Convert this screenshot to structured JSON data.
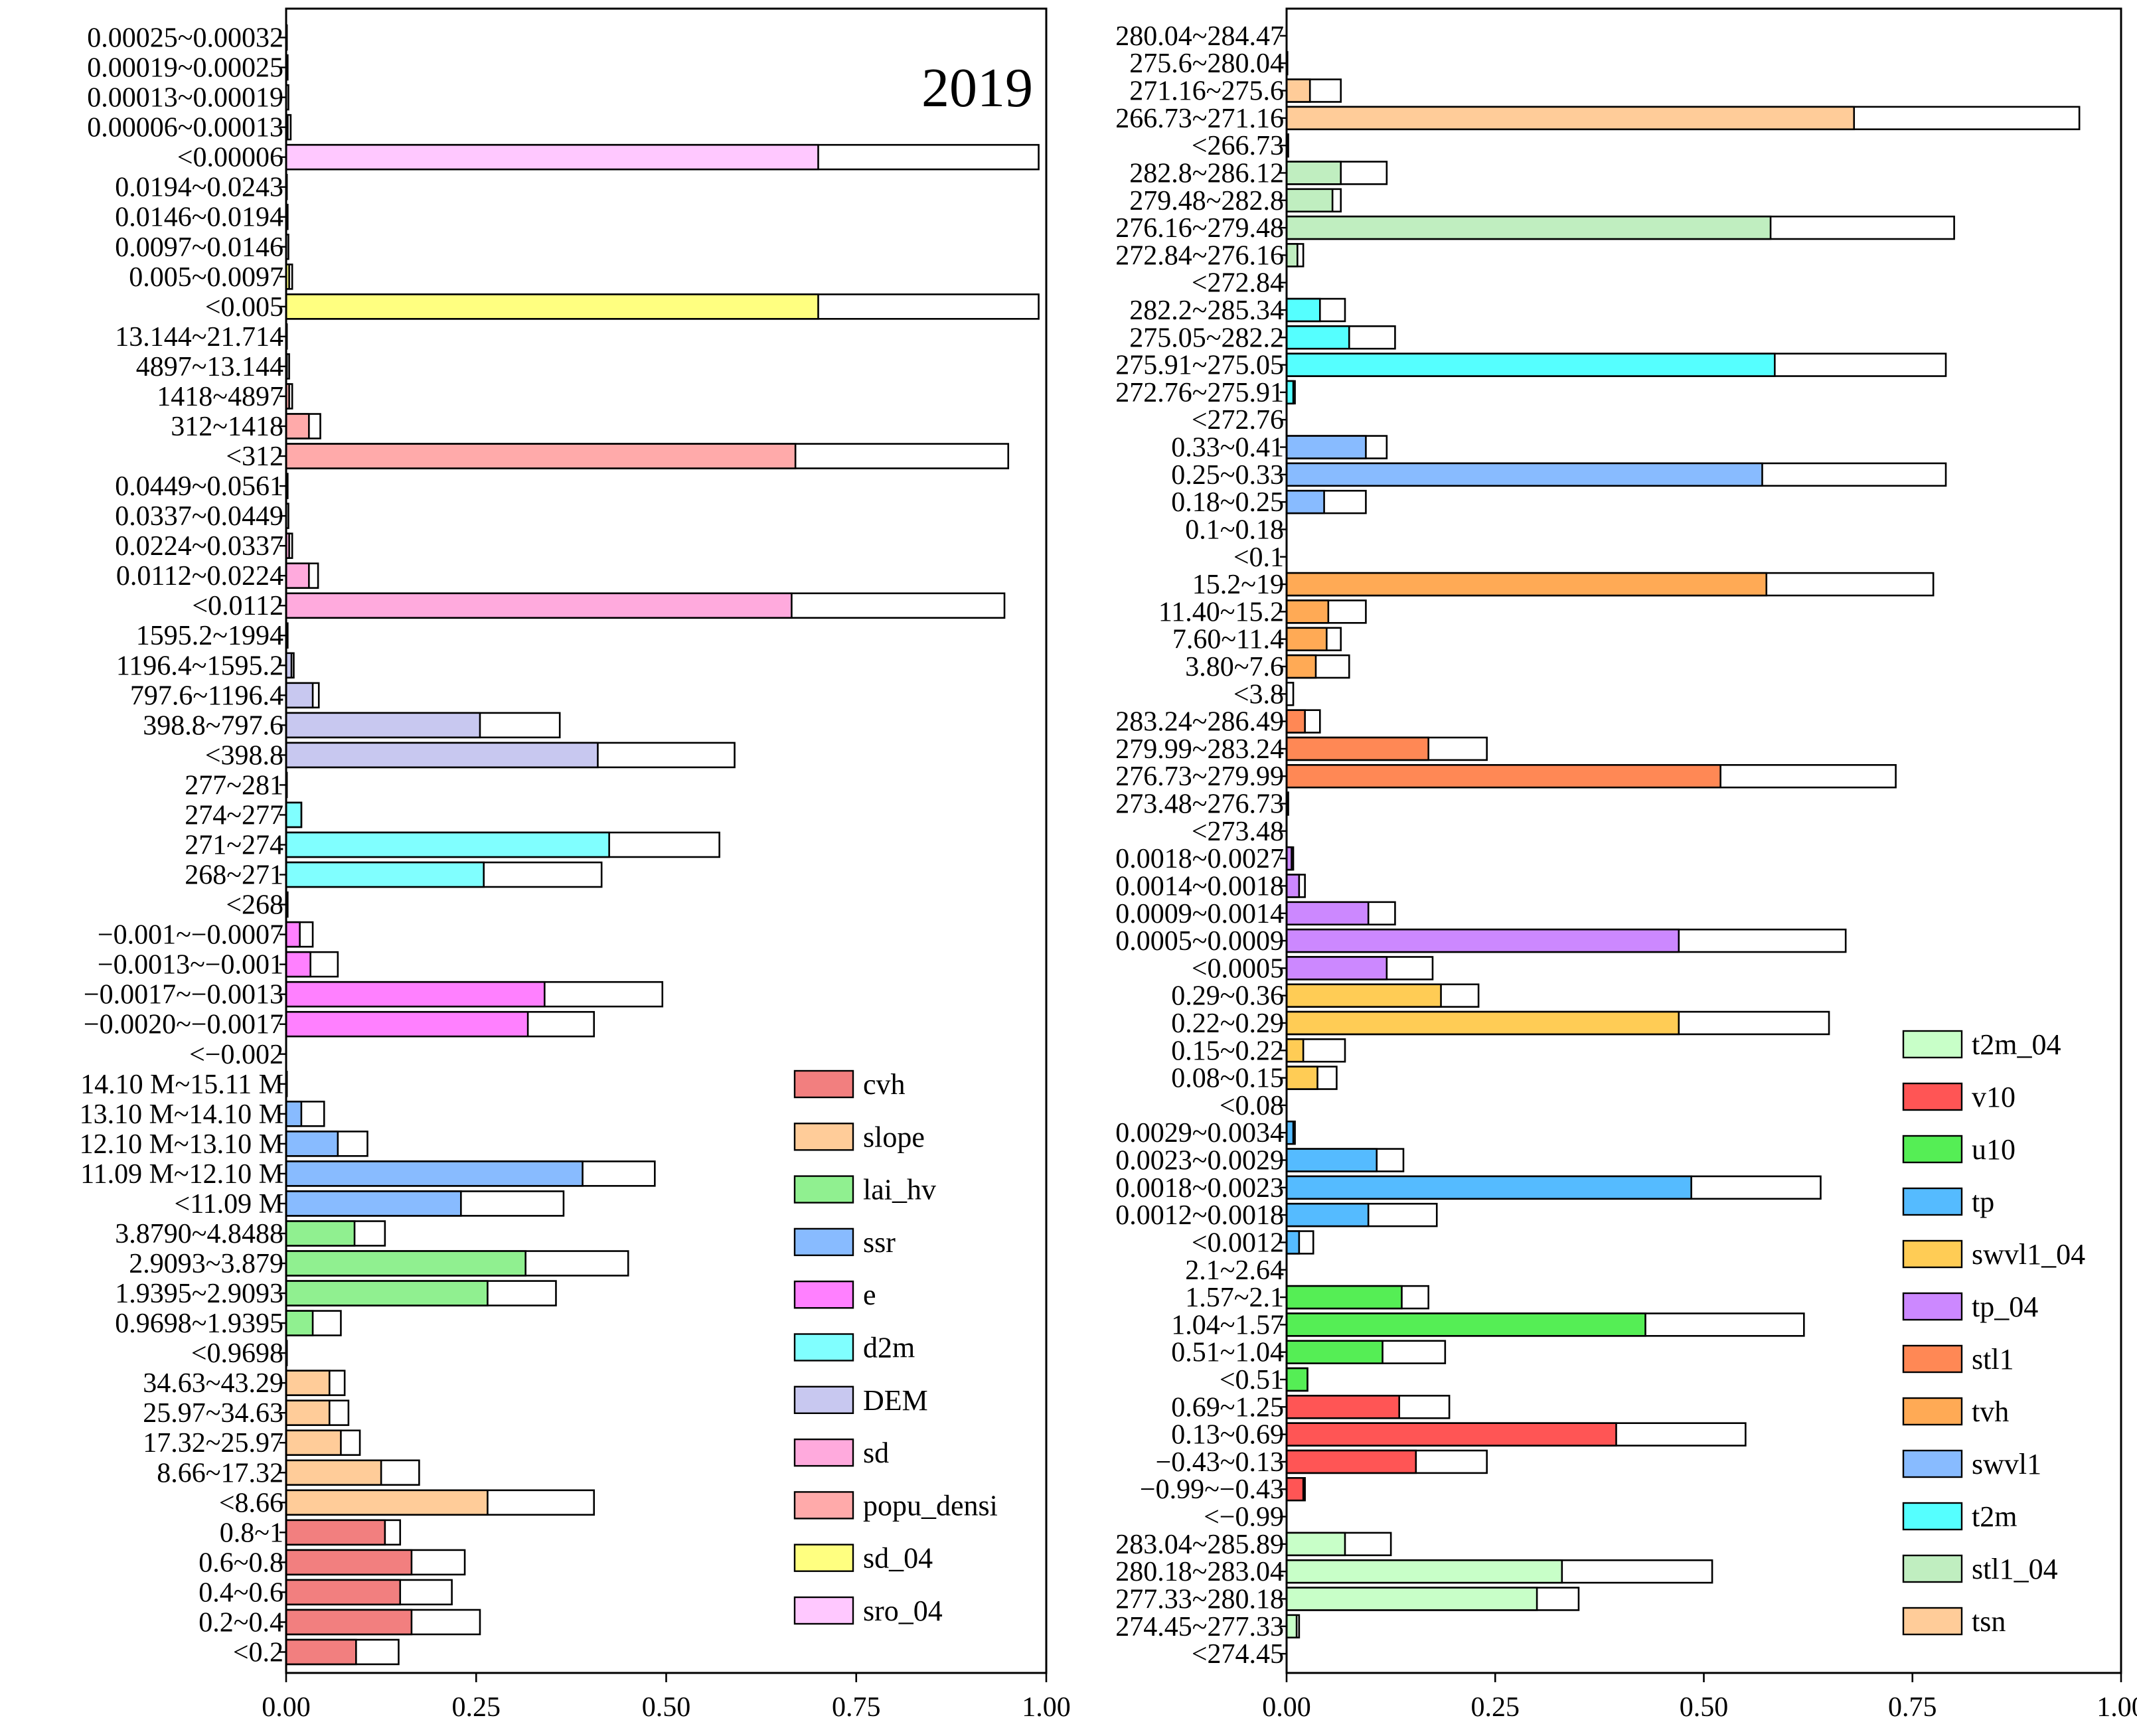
{
  "chart_data": [
    {
      "type": "bar",
      "orientation": "horizontal",
      "panel": "left",
      "title": "2019",
      "xlim": [
        0,
        1
      ],
      "xticks": [
        "0.00",
        "0.25",
        "0.50",
        "0.75",
        "1.00"
      ],
      "note": "Each bar: filled segment = first value, outlined segment ends at second value (cumulative). Categories listed top to bottom.",
      "groups": [
        {
          "name": "sro_04",
          "color": "#ffc8ff",
          "bars": [
            {
              "label": "0.00025~0.00032",
              "value": 0.0,
              "total": 0.001
            },
            {
              "label": "0.00019~0.00025",
              "value": 0.0,
              "total": 0.002
            },
            {
              "label": "0.00013~0.00019",
              "value": 0.0,
              "total": 0.003
            },
            {
              "label": "0.00006~0.00013",
              "value": 0.002,
              "total": 0.006
            },
            {
              "label": "<0.00006",
              "value": 0.7,
              "total": 0.99
            }
          ]
        },
        {
          "name": "sd_04",
          "color": "#ffff80",
          "bars": [
            {
              "label": "0.0194~0.0243",
              "value": 0.0,
              "total": 0.001
            },
            {
              "label": "0.0146~0.0194",
              "value": 0.0,
              "total": 0.002
            },
            {
              "label": "0.0097~0.0146",
              "value": 0.0,
              "total": 0.003
            },
            {
              "label": "0.005~0.0097",
              "value": 0.004,
              "total": 0.008
            },
            {
              "label": "<0.005",
              "value": 0.7,
              "total": 0.99
            }
          ]
        },
        {
          "name": "popu_densi",
          "color": "#ffaaaa",
          "bars": [
            {
              "label": "13.144~21.714",
              "value": 0.0,
              "total": 0.001
            },
            {
              "label": "4897~13.144",
              "value": 0.001,
              "total": 0.004
            },
            {
              "label": "1418~4897",
              "value": 0.004,
              "total": 0.008
            },
            {
              "label": "312~1418",
              "value": 0.03,
              "total": 0.045
            },
            {
              "label": "<312",
              "value": 0.67,
              "total": 0.95
            }
          ]
        },
        {
          "name": "sd",
          "color": "#ffaadd",
          "bars": [
            {
              "label": "0.0449~0.0561",
              "value": 0.0,
              "total": 0.002
            },
            {
              "label": "0.0337~0.0449",
              "value": 0.0,
              "total": 0.003
            },
            {
              "label": "0.0224~0.0337",
              "value": 0.004,
              "total": 0.008
            },
            {
              "label": "0.0112~0.0224",
              "value": 0.03,
              "total": 0.042
            },
            {
              "label": "<0.0112",
              "value": 0.665,
              "total": 0.945
            }
          ]
        },
        {
          "name": "DEM",
          "color": "#c8c8f0",
          "bars": [
            {
              "label": "1595.2~1994",
              "value": 0.0,
              "total": 0.002
            },
            {
              "label": "1196.4~1595.2",
              "value": 0.007,
              "total": 0.01
            },
            {
              "label": "797.6~1196.4",
              "value": 0.035,
              "total": 0.043
            },
            {
              "label": "398.8~797.6",
              "value": 0.255,
              "total": 0.36
            },
            {
              "label": "<398.8",
              "value": 0.41,
              "total": 0.59
            }
          ]
        },
        {
          "name": "d2m",
          "color": "#80ffff",
          "bars": [
            {
              "label": "277~281",
              "value": 0.0,
              "total": 0.001
            },
            {
              "label": "274~277",
              "value": 0.02,
              "total": 0.02
            },
            {
              "label": "271~274",
              "value": 0.425,
              "total": 0.57
            },
            {
              "label": "268~271",
              "value": 0.26,
              "total": 0.415
            },
            {
              "label": "<268",
              "value": 0.0,
              "total": 0.002
            }
          ]
        },
        {
          "name": "e",
          "color": "#ff80ff",
          "bars": [
            {
              "label": "−0.001~−0.0007",
              "value": 0.018,
              "total": 0.035
            },
            {
              "label": "−0.0013~−0.001",
              "value": 0.032,
              "total": 0.068
            },
            {
              "label": "−0.0017~−0.0013",
              "value": 0.34,
              "total": 0.495
            },
            {
              "label": "−0.0020~−0.0017",
              "value": 0.318,
              "total": 0.405
            },
            {
              "label": "<−0.002",
              "value": 0.0,
              "total": 0.0
            }
          ]
        },
        {
          "name": "ssr",
          "color": "#88bbff",
          "bars": [
            {
              "label": "14.10 M~15.11 M",
              "value": 0.0,
              "total": 0.001
            },
            {
              "label": "13.10 M~14.10 M",
              "value": 0.02,
              "total": 0.05
            },
            {
              "label": "12.10 M~13.10 M",
              "value": 0.068,
              "total": 0.107
            },
            {
              "label": "11.09 M~12.10 M",
              "value": 0.39,
              "total": 0.485
            },
            {
              "label": "<11.09 M",
              "value": 0.23,
              "total": 0.365
            }
          ]
        },
        {
          "name": "lai_hv",
          "color": "#90f090",
          "bars": [
            {
              "label": "3.8790~4.8488",
              "value": 0.09,
              "total": 0.13
            },
            {
              "label": "2.9093~3.879",
              "value": 0.315,
              "total": 0.45
            },
            {
              "label": "1.9395~2.9093",
              "value": 0.265,
              "total": 0.355
            },
            {
              "label": "0.9698~1.9395",
              "value": 0.035,
              "total": 0.072
            },
            {
              "label": "<0.9698",
              "value": 0.0,
              "total": 0.001
            }
          ]
        },
        {
          "name": "slope",
          "color": "#ffcc99",
          "bars": [
            {
              "label": "34.63~43.29",
              "value": 0.057,
              "total": 0.077
            },
            {
              "label": "25.97~34.63",
              "value": 0.057,
              "total": 0.082
            },
            {
              "label": "17.32~25.97",
              "value": 0.072,
              "total": 0.097
            },
            {
              "label": "8.66~17.32",
              "value": 0.125,
              "total": 0.175
            },
            {
              "label": "<8.66",
              "value": 0.265,
              "total": 0.405
            }
          ]
        },
        {
          "name": "cvh",
          "color": "#f27f7f",
          "bars": [
            {
              "label": "0.8~1",
              "value": 0.13,
              "total": 0.15
            },
            {
              "label": "0.6~0.8",
              "value": 0.165,
              "total": 0.235
            },
            {
              "label": "0.4~0.6",
              "value": 0.15,
              "total": 0.218
            },
            {
              "label": "0.2~0.4",
              "value": 0.165,
              "total": 0.255
            },
            {
              "label": "<0.2",
              "value": 0.092,
              "total": 0.148
            }
          ]
        }
      ],
      "legend": {
        "placement": "bottom-right",
        "entries": [
          {
            "name": "cvh",
            "color": "#f27f7f"
          },
          {
            "name": "slope",
            "color": "#ffcc99"
          },
          {
            "name": "lai_hv",
            "color": "#90f090"
          },
          {
            "name": "ssr",
            "color": "#88bbff"
          },
          {
            "name": "e",
            "color": "#ff80ff"
          },
          {
            "name": "d2m",
            "color": "#80ffff"
          },
          {
            "name": "DEM",
            "color": "#c8c8f0"
          },
          {
            "name": "sd",
            "color": "#ffaadd"
          },
          {
            "name": "popu_densi",
            "color": "#ffaaaa"
          },
          {
            "name": "sd_04",
            "color": "#ffff80"
          },
          {
            "name": "sro_04",
            "color": "#ffc8ff"
          }
        ]
      }
    },
    {
      "type": "bar",
      "orientation": "horizontal",
      "panel": "right",
      "xlim": [
        0,
        1
      ],
      "xticks": [
        "0.00",
        "0.25",
        "0.50",
        "0.75",
        "1.00"
      ],
      "groups": [
        {
          "name": "tsn",
          "color": "#ffcc99",
          "bars": [
            {
              "label": "280.04~284.47",
              "value": 0.0,
              "total": 0.0
            },
            {
              "label": "275.6~280.04",
              "value": 0.0,
              "total": 0.001
            },
            {
              "label": "271.16~275.6",
              "value": 0.028,
              "total": 0.065
            },
            {
              "label": "266.73~271.16",
              "value": 0.68,
              "total": 0.95
            },
            {
              "label": "<266.73",
              "value": 0.0,
              "total": 0.002
            }
          ]
        },
        {
          "name": "stl1_04",
          "color": "#c0eec0",
          "bars": [
            {
              "label": "282.8~286.12",
              "value": 0.065,
              "total": 0.12
            },
            {
              "label": "279.48~282.8",
              "value": 0.055,
              "total": 0.065
            },
            {
              "label": "276.16~279.48",
              "value": 0.58,
              "total": 0.8
            },
            {
              "label": "272.84~276.16",
              "value": 0.013,
              "total": 0.02
            },
            {
              "label": "<272.84",
              "value": 0.0,
              "total": 0.0
            }
          ]
        },
        {
          "name": "t2m",
          "color": "#55ffff",
          "bars": [
            {
              "label": "282.2~285.34",
              "value": 0.04,
              "total": 0.07
            },
            {
              "label": "275.05~282.2",
              "value": 0.075,
              "total": 0.13
            },
            {
              "label": "275.91~275.05",
              "value": 0.585,
              "total": 0.79
            },
            {
              "label": "272.76~275.91",
              "value": 0.008,
              "total": 0.01
            },
            {
              "label": "<272.76",
              "value": 0.0,
              "total": 0.0
            }
          ]
        },
        {
          "name": "swvl1",
          "color": "#88bbff",
          "bars": [
            {
              "label": "0.33~0.41",
              "value": 0.095,
              "total": 0.12
            },
            {
              "label": "0.25~0.33",
              "value": 0.57,
              "total": 0.79
            },
            {
              "label": "0.18~0.25",
              "value": 0.045,
              "total": 0.095
            },
            {
              "label": "0.1~0.18",
              "value": 0.0,
              "total": 0.0
            },
            {
              "label": "<0.1",
              "value": 0.0,
              "total": 0.0
            }
          ]
        },
        {
          "name": "tvh",
          "color": "#ffaa55",
          "bars": [
            {
              "label": "15.2~19",
              "value": 0.575,
              "total": 0.775
            },
            {
              "label": "11.40~15.2",
              "value": 0.05,
              "total": 0.095
            },
            {
              "label": "7.60~11.4",
              "value": 0.048,
              "total": 0.065
            },
            {
              "label": "3.80~7.6",
              "value": 0.035,
              "total": 0.075
            },
            {
              "label": "<3.8",
              "value": 0.0,
              "total": 0.008
            }
          ]
        },
        {
          "name": "stl1",
          "color": "#ff8855",
          "bars": [
            {
              "label": "283.24~286.49",
              "value": 0.022,
              "total": 0.04
            },
            {
              "label": "279.99~283.24",
              "value": 0.17,
              "total": 0.24
            },
            {
              "label": "276.73~279.99",
              "value": 0.52,
              "total": 0.73
            },
            {
              "label": "273.48~276.73",
              "value": 0.0,
              "total": 0.002
            },
            {
              "label": "<273.48",
              "value": 0.0,
              "total": 0.0
            }
          ]
        },
        {
          "name": "tp_04",
          "color": "#cc88ff",
          "bars": [
            {
              "label": "0.0018~0.0027",
              "value": 0.006,
              "total": 0.008
            },
            {
              "label": "0.0014~0.0018",
              "value": 0.015,
              "total": 0.022
            },
            {
              "label": "0.0009~0.0014",
              "value": 0.098,
              "total": 0.13
            },
            {
              "label": "0.0005~0.0009",
              "value": 0.47,
              "total": 0.67
            },
            {
              "label": "<0.0005",
              "value": 0.12,
              "total": 0.175
            }
          ]
        },
        {
          "name": "swvl1_04",
          "color": "#ffcc55",
          "bars": [
            {
              "label": "0.29~0.36",
              "value": 0.185,
              "total": 0.23
            },
            {
              "label": "0.22~0.29",
              "value": 0.47,
              "total": 0.65
            },
            {
              "label": "0.15~0.22",
              "value": 0.02,
              "total": 0.07
            },
            {
              "label": "0.08~0.15",
              "value": 0.037,
              "total": 0.06
            },
            {
              "label": "<0.08",
              "value": 0.0,
              "total": 0.0
            }
          ]
        },
        {
          "name": "tp",
          "color": "#55bbff",
          "bars": [
            {
              "label": "0.0029~0.0034",
              "value": 0.008,
              "total": 0.01
            },
            {
              "label": "0.0023~0.0029",
              "value": 0.108,
              "total": 0.14
            },
            {
              "label": "0.0018~0.0023",
              "value": 0.485,
              "total": 0.64
            },
            {
              "label": "0.0012~0.0018",
              "value": 0.098,
              "total": 0.18
            },
            {
              "label": "<0.0012",
              "value": 0.015,
              "total": 0.032
            }
          ]
        },
        {
          "name": "u10",
          "color": "#55ee55",
          "bars": [
            {
              "label": "2.1~2.64",
              "value": 0.0,
              "total": 0.0
            },
            {
              "label": "1.57~2.1",
              "value": 0.138,
              "total": 0.17
            },
            {
              "label": "1.04~1.57",
              "value": 0.43,
              "total": 0.62
            },
            {
              "label": "0.51~1.04",
              "value": 0.115,
              "total": 0.19
            },
            {
              "label": "<0.51",
              "value": 0.025,
              "total": 0.025
            }
          ]
        },
        {
          "name": "v10",
          "color": "#ff5555",
          "bars": [
            {
              "label": "0.69~1.25",
              "value": 0.135,
              "total": 0.195
            },
            {
              "label": "0.13~0.69",
              "value": 0.395,
              "total": 0.55
            },
            {
              "label": "−0.43~0.13",
              "value": 0.155,
              "total": 0.24
            },
            {
              "label": "−0.99~−0.43",
              "value": 0.02,
              "total": 0.022
            },
            {
              "label": "<−0.99",
              "value": 0.0,
              "total": 0.0
            }
          ]
        },
        {
          "name": "t2m_04",
          "color": "#c8ffc8",
          "bars": [
            {
              "label": "283.04~285.89",
              "value": 0.07,
              "total": 0.125
            },
            {
              "label": "280.18~283.04",
              "value": 0.33,
              "total": 0.51
            },
            {
              "label": "277.33~280.18",
              "value": 0.3,
              "total": 0.35
            },
            {
              "label": "274.45~277.33",
              "value": 0.012,
              "total": 0.015
            },
            {
              "label": "<274.45",
              "value": 0.0,
              "total": 0.0
            }
          ]
        }
      ],
      "legend": {
        "placement": "bottom-right",
        "entries": [
          {
            "name": "t2m_04",
            "color": "#c8ffc8"
          },
          {
            "name": "v10",
            "color": "#ff5555"
          },
          {
            "name": "u10",
            "color": "#55ee55"
          },
          {
            "name": "tp",
            "color": "#55bbff"
          },
          {
            "name": "swvl1_04",
            "color": "#ffcc55"
          },
          {
            "name": "tp_04",
            "color": "#cc88ff"
          },
          {
            "name": "stl1",
            "color": "#ff8855"
          },
          {
            "name": "tvh",
            "color": "#ffaa55"
          },
          {
            "name": "swvl1",
            "color": "#88bbff"
          },
          {
            "name": "t2m",
            "color": "#55ffff"
          },
          {
            "name": "stl1_04",
            "color": "#c0eec0"
          },
          {
            "name": "tsn",
            "color": "#ffcc99"
          }
        ]
      }
    }
  ]
}
